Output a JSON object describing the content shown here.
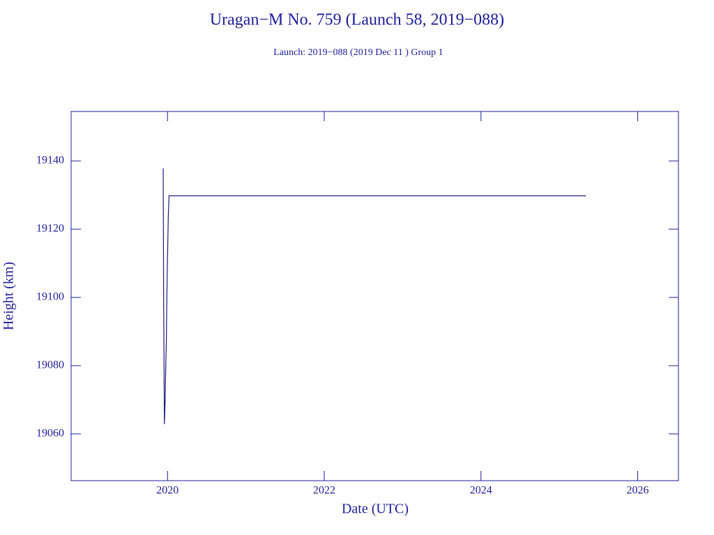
{
  "chart_data": {
    "type": "line",
    "title": "Uragan−M No. 759 (Launch 58, 2019−088)",
    "subtitle": "Launch: 2019−088  (2019 Dec 11 )  Group 1",
    "x_label": "Date (UTC)",
    "y_label": "Height (km)",
    "x": [
      2019.945,
      2019.95,
      2019.96,
      2019.97,
      2019.975,
      2019.985,
      2019.995,
      2020.01,
      2020.02,
      2021.5,
      2025.34
    ],
    "series": [
      {
        "name": "Height",
        "color": "#1c1c7c",
        "values": [
          19137.8,
          19102.6,
          19062.9,
          19069.8,
          19076.7,
          19087,
          19105.4,
          19123.8,
          19129.8,
          19129.8,
          19129.8
        ]
      }
    ],
    "xlim": [
      2018.77,
      2026.52
    ],
    "ylim": [
      19046.3,
      19154.5
    ],
    "xticks": [
      2020,
      2022,
      2024,
      2026
    ],
    "yticks": [
      19060,
      19080,
      19100,
      19120,
      19140
    ],
    "axis_color": "#1c1c9c"
  }
}
